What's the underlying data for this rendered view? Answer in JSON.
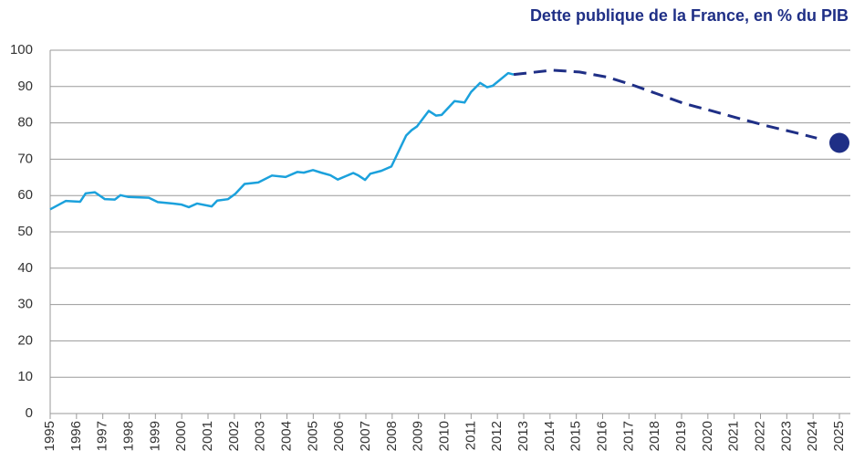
{
  "chart_data": {
    "type": "line",
    "title": "Dette publique de la France, en % du PIB",
    "xlim": [
      1995,
      2025
    ],
    "xticks": [
      1995,
      1996,
      1997,
      1998,
      1999,
      2000,
      2001,
      2002,
      2003,
      2004,
      2005,
      2006,
      2007,
      2008,
      2009,
      2010,
      2011,
      2012,
      2013,
      2014,
      2015,
      2016,
      2017,
      2018,
      2019,
      2020,
      2021,
      2022,
      2023,
      2024,
      2025
    ],
    "ylim": [
      0,
      100
    ],
    "yticks": [
      0,
      10,
      20,
      30,
      40,
      50,
      60,
      70,
      80,
      90,
      100
    ],
    "grid": true,
    "series": [
      {
        "color": "#1ba1dc",
        "style": "solid",
        "x": [
          1995.0,
          1995.59,
          1996.14,
          1996.35,
          1996.7,
          1997.08,
          1997.46,
          1997.67,
          1997.98,
          1998.75,
          1999.09,
          1999.68,
          2000.0,
          2000.27,
          2000.58,
          2001.14,
          2001.35,
          2001.76,
          2002.04,
          2002.39,
          2002.91,
          2003.43,
          2003.95,
          2004.4,
          2004.64,
          2004.99,
          2005.3,
          2005.65,
          2005.93,
          2006.52,
          2006.72,
          2006.97,
          2007.17,
          2007.59,
          2007.97,
          2008.53,
          2008.74,
          2008.94,
          2009.39,
          2009.67,
          2009.88,
          2010.37,
          2010.75,
          2011.0,
          2011.34,
          2011.61,
          2011.82,
          2012.41,
          2012.62
        ],
        "values": [
          56.2,
          58.5,
          58.3,
          60.6,
          60.9,
          59.0,
          58.9,
          60.1,
          59.6,
          59.4,
          58.2,
          57.8,
          57.5,
          56.8,
          57.8,
          57.0,
          58.6,
          59.0,
          60.5,
          63.2,
          63.6,
          65.5,
          65.1,
          66.5,
          66.3,
          67.0,
          66.3,
          65.6,
          64.4,
          66.2,
          65.5,
          64.3,
          66.0,
          66.8,
          68.0,
          76.5,
          78.0,
          79.0,
          83.3,
          82.0,
          82.2,
          86.0,
          85.6,
          88.5,
          91.0,
          89.8,
          90.2,
          93.7,
          93.3
        ]
      },
      {
        "color": "#1f2f86",
        "style": "dashed",
        "x": [
          2012.62,
          2014.08,
          2015.12,
          2016.16,
          2017.03,
          2018.07,
          2019.11,
          2020.15,
          2021.19,
          2022.23,
          2023.27,
          2024.14
        ],
        "values": [
          93.3,
          94.5,
          94.0,
          92.6,
          90.7,
          88.0,
          85.3,
          83.3,
          81.2,
          79.2,
          77.4,
          75.8
        ]
      },
      {
        "color": "#1f2f86",
        "style": "marker",
        "x": [
          2025
        ],
        "values": [
          74.5
        ]
      }
    ]
  }
}
